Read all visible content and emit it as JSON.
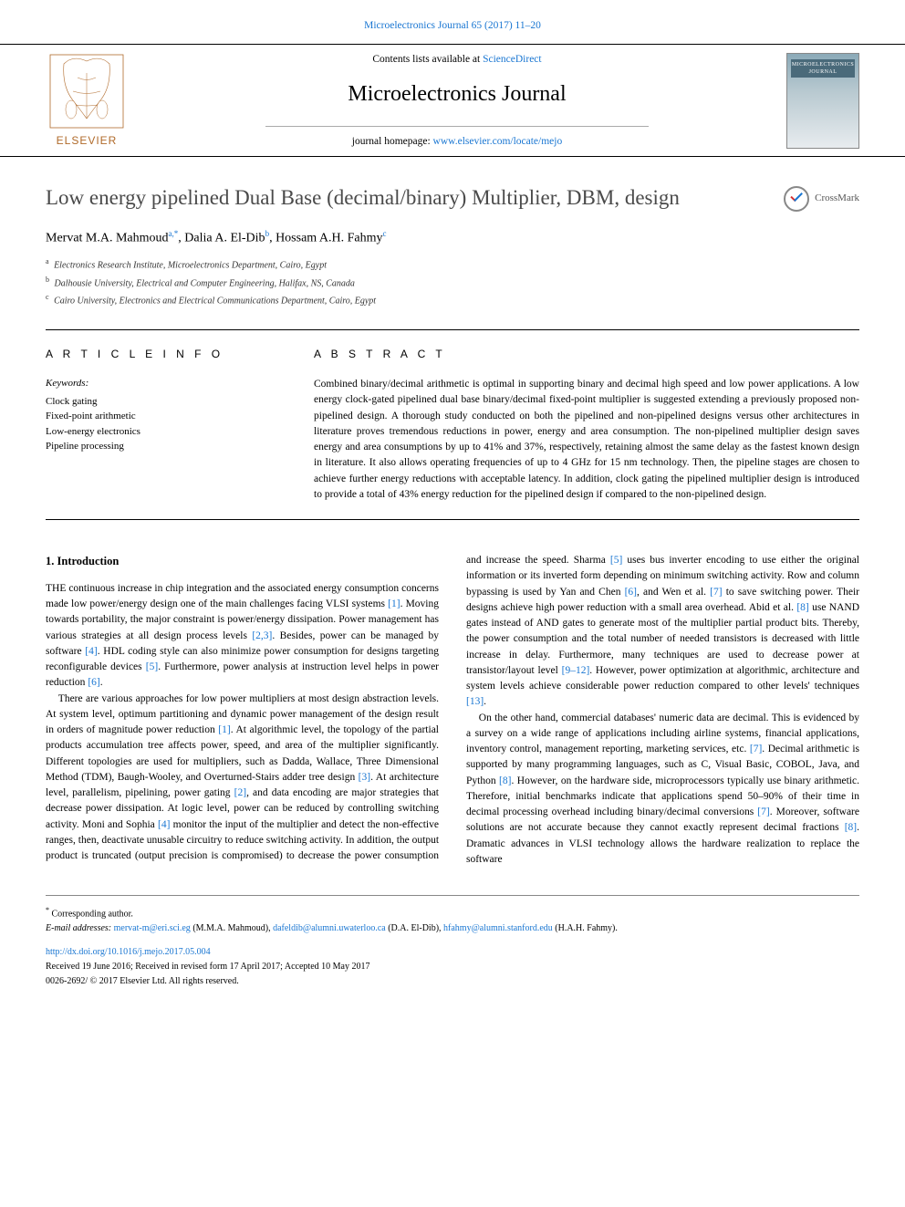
{
  "top_link_text": "Microelectronics Journal 65 (2017) 11–20",
  "header": {
    "contents_prefix": "Contents lists available at ",
    "contents_link": "ScienceDirect",
    "journal_name": "Microelectronics Journal",
    "homepage_prefix": "journal homepage: ",
    "homepage_link": "www.elsevier.com/locate/mejo",
    "elsevier_label": "ELSEVIER",
    "cover_label": "MICROELECTRONICS JOURNAL"
  },
  "article": {
    "title": "Low energy pipelined Dual Base (decimal/binary) Multiplier, DBM, design",
    "crossmark": "CrossMark",
    "authors_html": "Mervat M.A. Mahmoud<sup>a,*</sup>, Dalia A. El-Dib<sup>b</sup>, Hossam A.H. Fahmy<sup>c</sup>",
    "affiliations": [
      {
        "sup": "a",
        "text": "Electronics Research Institute, Microelectronics Department, Cairo, Egypt"
      },
      {
        "sup": "b",
        "text": "Dalhousie University, Electrical and Computer Engineering, Halifax, NS, Canada"
      },
      {
        "sup": "c",
        "text": "Cairo University, Electronics and Electrical Communications Department, Cairo, Egypt"
      }
    ]
  },
  "info": {
    "heading": "A R T I C L E  I N F O",
    "keywords_label": "Keywords:",
    "keywords": [
      "Clock gating",
      "Fixed-point arithmetic",
      "Low-energy electronics",
      "Pipeline processing"
    ]
  },
  "abstract": {
    "heading": "A B S T R A C T",
    "text": "Combined binary/decimal arithmetic is optimal in supporting binary and decimal high speed and low power applications. A low energy clock-gated pipelined dual base binary/decimal fixed-point multiplier is suggested extending a previously proposed non-pipelined design. A thorough study conducted on both the pipelined and non-pipelined designs versus other architectures in literature proves tremendous reductions in power, energy and area consumption. The non-pipelined multiplier design saves energy and area consumptions by up to 41% and 37%, respectively, retaining almost the same delay as the fastest known design in literature. It also allows operating frequencies of up to 4 GHz for 15 nm technology. Then, the pipeline stages are chosen to achieve further energy reductions with acceptable latency. In addition, clock gating the pipelined multiplier design is introduced to provide a total of 43% energy reduction for the pipelined design if compared to the non-pipelined design."
  },
  "body": {
    "section_title": "1. Introduction",
    "p1_lead": "THE",
    "p1_rest": " continuous increase in chip integration and the associated energy consumption concerns made low power/energy design one of the main challenges facing VLSI systems ",
    "p1_after_ref1": ". Moving towards portability, the major constraint is power/energy dissipation. Power management has various strategies at all design process levels ",
    "p1_after_ref23": ". Besides, power can be managed by software ",
    "p1_after_ref4": ". HDL coding style can also minimize power consumption for designs targeting reconfigurable devices ",
    "p1_after_ref5": ". Furthermore, power analysis at instruction level helps in power reduction ",
    "p2": "There are various approaches for low power multipliers at most design abstraction levels. At system level, optimum partitioning and dynamic power management of the design result in orders of magnitude power reduction ",
    "p2b": ". At algorithmic level, the topology of the partial products accumulation tree affects power, speed, and area of the multiplier significantly. Different topologies are used for multipliers, such as Dadda, Wallace, Three Dimensional Method (TDM), Baugh-Wooley, and Overturned-Stairs adder tree design ",
    "p2c": ". At architecture level, parallelism, pipelining, power gating ",
    "p2d": ", and data encoding are major strategies that decrease power dissipation. At logic level, power can be reduced by controlling switching activity. Moni and Sophia ",
    "p2e": " monitor the input of the multiplier and detect the non-effective ranges, then, deactivate unusable circuitry to reduce switching activity. In addition, the output product is truncated (output precision is compromised) to decrease the power consumption and increase the speed. Sharma ",
    "p2f": " uses bus inverter encoding to use either the original information or its inverted form depending on minimum switching activity. Row and column bypassing is used by Yan and Chen ",
    "p2g": ", and Wen et al. ",
    "p2h": " to save switching power. Their designs achieve high power reduction with a small area overhead. Abid et al. ",
    "p2i": " use NAND gates instead of AND gates to generate most of the multiplier partial product bits. Thereby, the power consumption and the total number of needed transistors is decreased with little increase in delay. Furthermore, many techniques are used to decrease power at transistor/layout level ",
    "p2j": ". However, power optimization at algorithmic, architecture and system levels achieve considerable power reduction compared to other levels' techniques ",
    "p3a": "On the other hand, commercial databases' numeric data are decimal. This is evidenced by a survey on a wide range of applications including airline systems, financial applications, inventory control, management reporting, marketing services, etc. ",
    "p3b": ". Decimal arithmetic is supported by many programming languages, such as C, Visual Basic, COBOL, Java, and Python ",
    "p3c": ". However, on the hardware side, microprocessors typically use binary arithmetic. Therefore, initial benchmarks indicate that applications spend 50–90% of their time in decimal processing overhead including binary/decimal conversions ",
    "p3d": ". Moreover, software solutions are not accurate because they cannot exactly represent decimal fractions ",
    "p3e": ". Dramatic advances in VLSI technology allows the hardware realization to replace the software",
    "refs": {
      "r1": "[1]",
      "r2": "[2]",
      "r23": "[2,3]",
      "r3": "[3]",
      "r4": "[4]",
      "r5": "[5]",
      "r6": "[6]",
      "r7": "[7]",
      "r8": "[8]",
      "r912": "[9–12]",
      "r13": "[13]"
    }
  },
  "footer": {
    "corr": "Corresponding author.",
    "email_label": "E-mail addresses: ",
    "emails": [
      {
        "addr": "mervat-m@eri.sci.eg",
        "who": " (M.M.A. Mahmoud), "
      },
      {
        "addr": "dafeldib@alumni.uwaterloo.ca",
        "who": " (D.A. El-Dib), "
      },
      {
        "addr": "hfahmy@alumni.stanford.edu",
        "who": " (H.A.H. Fahmy)."
      }
    ],
    "doi": "http://dx.doi.org/10.1016/j.mejo.2017.05.004",
    "received": "Received 19 June 2016; Received in revised form 17 April 2017; Accepted 10 May 2017",
    "copyright": "0026-2692/ © 2017 Elsevier Ltd. All rights reserved."
  },
  "colors": {
    "link": "#1976d2",
    "text": "#000000",
    "title_gray": "#4a4a4a"
  }
}
